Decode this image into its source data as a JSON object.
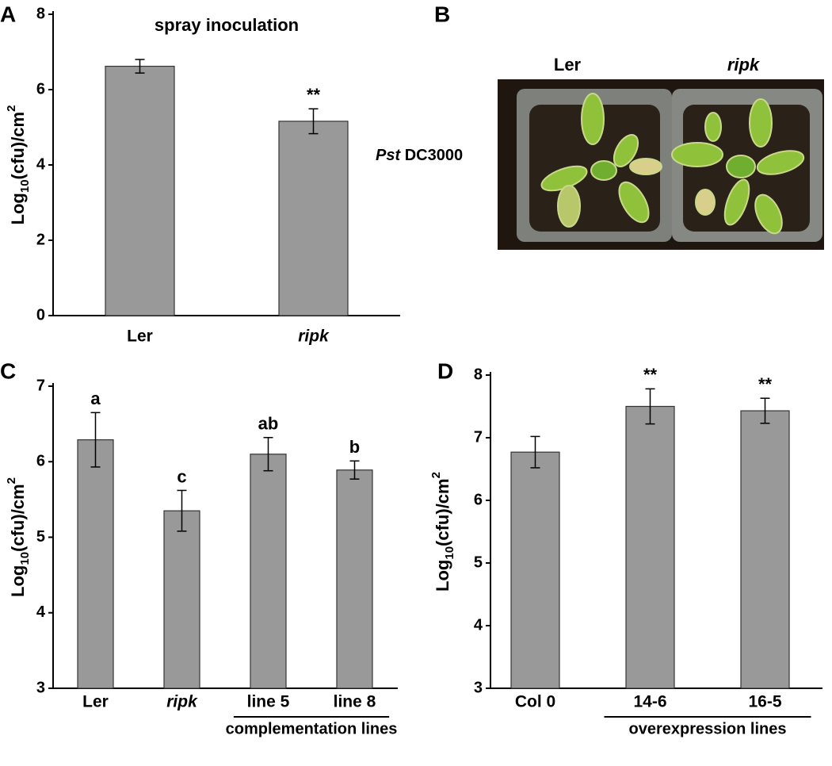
{
  "chart_data": [
    {
      "type": "bar",
      "panel_label": "A",
      "title": "spray inoculation",
      "y_label": [
        "Log",
        "10",
        "(cfu)/cm",
        "2"
      ],
      "categories": [
        "Ler",
        "ripk"
      ],
      "category_styles": [
        "normal",
        "italic"
      ],
      "values": [
        6.62,
        5.16
      ],
      "errors": [
        0.18,
        0.33
      ],
      "value_annotations": [
        null,
        "**"
      ],
      "color": "#999999",
      "ylim": [
        0,
        8
      ],
      "yticks": [
        0,
        2,
        4,
        6,
        8
      ]
    },
    {
      "type": "bar",
      "panel_label": "C",
      "y_label": [
        "Log",
        "10",
        "(cfu)/cm",
        "2"
      ],
      "categories": [
        "Ler",
        "ripk",
        "line 5",
        "line 8"
      ],
      "category_styles": [
        "normal",
        "italic",
        "normal",
        "normal"
      ],
      "values": [
        6.29,
        5.35,
        6.1,
        5.89
      ],
      "errors": [
        0.36,
        0.27,
        0.22,
        0.12
      ],
      "value_annotations": [
        "a",
        "c",
        "ab",
        "b"
      ],
      "groups": [
        {
          "label": "complementation lines",
          "categories": [
            2,
            3
          ]
        }
      ],
      "color": "#999999",
      "ylim": [
        3,
        7
      ],
      "yticks": [
        3,
        4,
        5,
        6,
        7
      ]
    },
    {
      "type": "bar",
      "panel_label": "D",
      "y_label": [
        "Log",
        "10",
        "(cfu)/cm",
        "2"
      ],
      "categories": [
        "Col 0",
        "14-6",
        "16-5"
      ],
      "category_styles": [
        "normal",
        "normal",
        "normal"
      ],
      "values": [
        6.77,
        7.5,
        7.43
      ],
      "errors": [
        0.25,
        0.28,
        0.2
      ],
      "value_annotations": [
        null,
        "**",
        "**"
      ],
      "groups": [
        {
          "label": "overexpression lines",
          "categories": [
            1,
            2
          ]
        }
      ],
      "color": "#999999",
      "ylim": [
        3,
        8
      ],
      "yticks": [
        3,
        4,
        5,
        6,
        7,
        8
      ]
    }
  ],
  "photo_panel": {
    "panel_label": "B",
    "columns": [
      "Ler",
      "ripk"
    ],
    "row_label_italic": "Pst",
    "row_label": "DC3000"
  }
}
